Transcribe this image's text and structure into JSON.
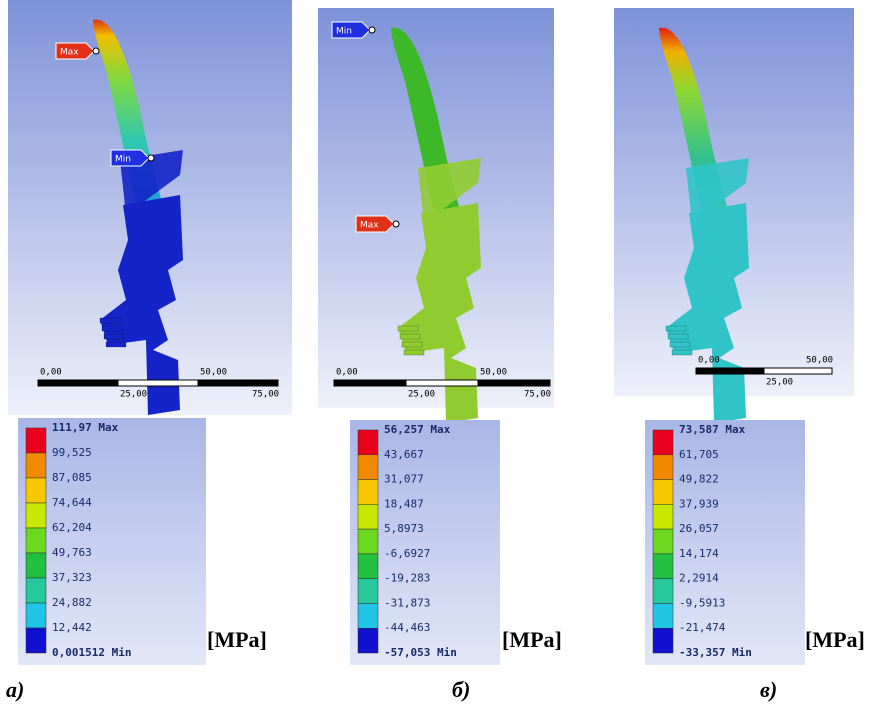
{
  "panels": [
    {
      "max_tag": "Max",
      "min_tag": "Min",
      "scale": [
        "0,00",
        "25,00",
        "50,00",
        "75,00"
      ],
      "legend": [
        "111,97 Max",
        "99,525",
        "87,085",
        "74,644",
        "62,204",
        "49,763",
        "37,323",
        "24,882",
        "12,442",
        "0,001512 Min"
      ],
      "unit": "[MPa]",
      "caption": "а)"
    },
    {
      "max_tag": "Max",
      "min_tag": "Min",
      "scale": [
        "0,00",
        "25,00",
        "50,00",
        "75,00"
      ],
      "legend": [
        "56,257 Max",
        "43,667",
        "31,077",
        "18,487",
        "5,8973",
        "-6,6927",
        "-19,283",
        "-31,873",
        "-44,463",
        "-57,053 Min"
      ],
      "unit": "[MPa]",
      "caption": "б)"
    },
    {
      "scale": [
        "0,00",
        "25,00",
        "50,00"
      ],
      "legend": [
        "73,587 Max",
        "61,705",
        "49,822",
        "37,939",
        "26,057",
        "14,174",
        "2,2914",
        "-9,5913",
        "-21,474",
        "-33,357 Min"
      ],
      "unit": "[MPa]",
      "caption": "в)"
    }
  ]
}
